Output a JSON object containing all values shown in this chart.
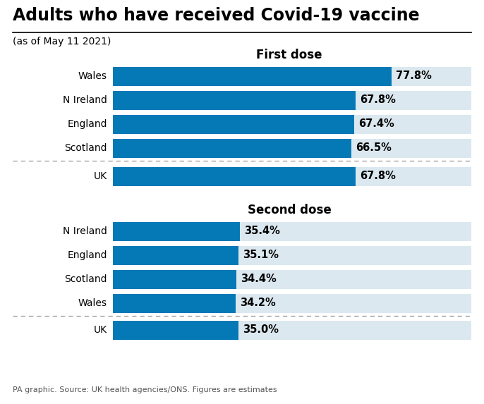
{
  "title": "Adults who have received Covid-19 vaccine",
  "subtitle": "(as of May 11 2021)",
  "footnote": "PA graphic. Source: UK health agencies/ONS. Figures are estimates",
  "background_color": "#ffffff",
  "bar_color": "#0579b6",
  "bg_bar_color": "#dce8f0",
  "first_dose": {
    "section_label": "First dose",
    "labels": [
      "Wales",
      "N Ireland",
      "England",
      "Scotland"
    ],
    "values": [
      77.8,
      67.8,
      67.4,
      66.5
    ],
    "uk_label": "UK",
    "uk_value": 67.8
  },
  "second_dose": {
    "section_label": "Second dose",
    "labels": [
      "N Ireland",
      "England",
      "Scotland",
      "Wales"
    ],
    "values": [
      35.4,
      35.1,
      34.4,
      34.2
    ],
    "uk_label": "UK",
    "uk_value": 35.0
  },
  "max_value": 100,
  "label_fontsize": 10,
  "value_fontsize": 10.5,
  "section_fontsize": 12,
  "title_fontsize": 17,
  "subtitle_fontsize": 10,
  "footnote_fontsize": 8
}
